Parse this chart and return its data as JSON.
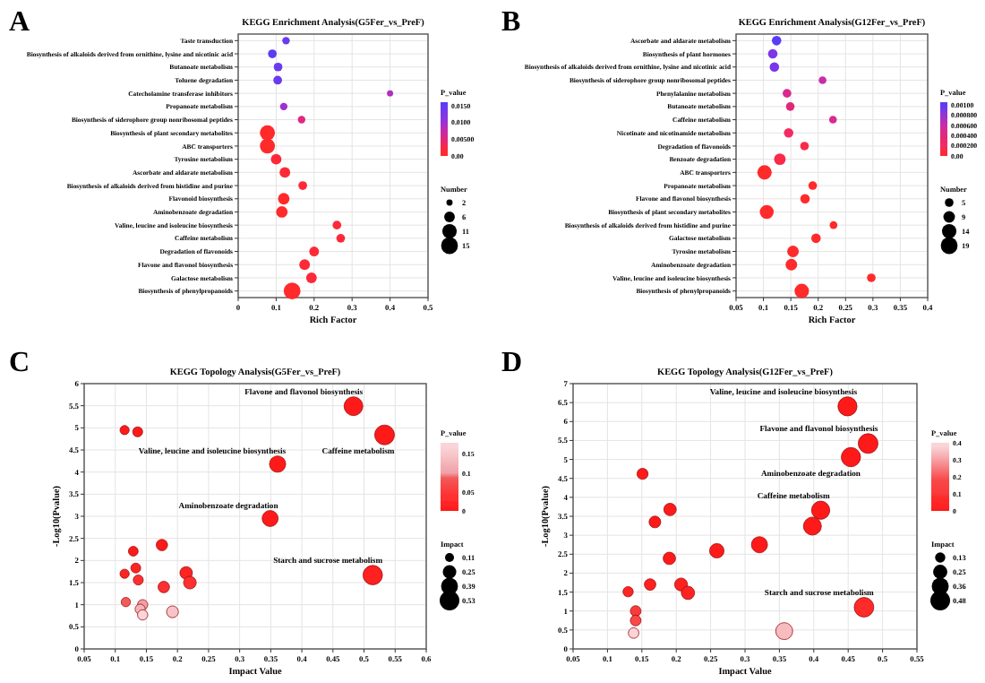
{
  "chart_data": [
    {
      "type": "bubble",
      "title": "KEGG Enrichment Analysis(G5Fer_vs_PreF)",
      "xlabel": "Rich Factor",
      "orientation": "horizontal",
      "annotations": [
        "A"
      ],
      "categories": [
        "Taste transduction",
        "Biosynthesis of alkaloids derived from ornithine, lysine and nicotinic acid",
        "Butanoate metabolism",
        "Toluene degradation",
        "Catecholamine transferase inhibitors",
        "Propanoate metabolism",
        "Biosynthesis of siderophore group nonribosomal peptides",
        "Biosynthesis of plant secondary metabolites",
        "ABC transporters",
        "Tyrosine metabolism",
        "Ascorbate and aldarate metabolism",
        "Biosynthesis of alkaloids derived from histidine and purine",
        "Flavonoid biosynthesis",
        "Aminobenzoate degradation",
        "Valine, leucine and isoleucine biosynthesis",
        "Caffeine metabolism",
        "Degradation of flavonoids",
        "Flavone and flavonol biosynthesis",
        "Galactose metabolism",
        "Biosynthesis of phenylpropanoids"
      ],
      "series": [
        {
          "values": [
            0.126,
            0.09,
            0.105,
            0.104,
            0.4,
            0.12,
            0.167,
            0.077,
            0.077,
            0.1,
            0.123,
            0.17,
            0.12,
            0.115,
            0.26,
            0.27,
            0.2,
            0.175,
            0.193,
            0.142
          ],
          "sizes": [
            3,
            4,
            4,
            4,
            2,
            3,
            3,
            12,
            12,
            6,
            6,
            4,
            7,
            7,
            4,
            4,
            5,
            6,
            6,
            15
          ],
          "cvalues": [
            0.0148,
            0.0155,
            0.014,
            0.014,
            0.009,
            0.0095,
            0.005,
            0.0002,
            0.0003,
            0.001,
            0.0015,
            0.002,
            0.0008,
            0.0008,
            0.002,
            0.002,
            0.0015,
            0.001,
            0.001,
            0.0001
          ],
          "colors": [
            "#6a3af0",
            "#5a3cf5",
            "#6a3af0",
            "#6a3af0",
            "#b02ec0",
            "#a030d0",
            "#e02880",
            "#ff2a2a",
            "#ff2a2a",
            "#fc2a38",
            "#fc2a38",
            "#fc2a38",
            "#ff2a2a",
            "#ff2a2a",
            "#fc2a38",
            "#fc2a38",
            "#fc2a38",
            "#fc2a38",
            "#fc2a38",
            "#ff2a2a"
          ]
        }
      ],
      "xlim": [
        0,
        0.5
      ],
      "xticks": [
        0,
        0.1,
        0.2,
        0.3,
        0.4,
        0.5
      ],
      "grid": true,
      "clabel": "P_value",
      "clim": [
        0,
        0.016
      ],
      "cticks": [
        {
          "value": 0,
          "label": "0.00"
        },
        {
          "value": 0.005,
          "label": "0.00500"
        },
        {
          "value": 0.01,
          "label": "0.0100"
        },
        {
          "value": 0.015,
          "label": "0.0150"
        }
      ],
      "legend_title": "Number",
      "size_legend": [
        2,
        6,
        11,
        15
      ]
    },
    {
      "type": "bubble",
      "title": "KEGG Enrichment Analysis(G12Fer_vs_PreF)",
      "xlabel": "Rich Factor",
      "orientation": "horizontal",
      "annotations": [
        "B"
      ],
      "categories": [
        "Ascorbate and aldarate metabolism",
        "Biosynthesis of plant hormones",
        "Biosynthesis of alkaloids derived from ornithine, lysine and nicotinic acid",
        "Biosynthesis of siderophore group nonribosomal peptides",
        "Phenylalanine metabolism",
        "Butanoate metabolism",
        "Caffeine metabolism",
        "Nicotinate and nicotinamide metabolism",
        "Degradation of flavonoids",
        "Benzoate degradation",
        "ABC transporters",
        "Propanoate metabolism",
        "Flavone and flavonol biosynthesis",
        "Biosynthesis of plant secondary metabolites",
        "Biosynthesis of alkaloids derived from histidine and purine",
        "Galactose metabolism",
        "Tyrosine metabolism",
        "Aminobenzoate degradation",
        "Valine, leucine and isoleucine biosynthesis",
        "Biosynthesis of phenylpropanoids"
      ],
      "series": [
        {
          "values": [
            0.124,
            0.117,
            0.12,
            0.208,
            0.143,
            0.149,
            0.227,
            0.146,
            0.175,
            0.13,
            0.102,
            0.19,
            0.176,
            0.106,
            0.228,
            0.196,
            0.154,
            0.151,
            0.297,
            0.17
          ],
          "sizes": [
            6,
            6,
            6,
            4,
            5,
            5,
            4,
            6,
            5,
            9,
            14,
            5,
            6,
            13,
            4,
            6,
            9,
            9,
            5,
            14
          ],
          "cvalues": [
            0.001,
            0.0009,
            0.0009,
            0.0006,
            0.0005,
            0.0004,
            0.0005,
            0.0002,
            0.0001,
            0.0001,
            0,
            0,
            0,
            0,
            0,
            0,
            0,
            0,
            0,
            0
          ],
          "colors": [
            "#5a3cf5",
            "#7a36e8",
            "#7a36e8",
            "#c82ca8",
            "#d82a90",
            "#e02878",
            "#d82a90",
            "#f42a62",
            "#fa2a48",
            "#fa2a48",
            "#ff2a2a",
            "#ff2a2a",
            "#ff2a2a",
            "#ff2a2a",
            "#ff2a2a",
            "#ff2a2a",
            "#ff2a2a",
            "#ff2a2a",
            "#ff2a2a",
            "#ff2a2a"
          ]
        }
      ],
      "xlim": [
        0.05,
        0.4
      ],
      "xticks": [
        0.05,
        0.1,
        0.15,
        0.2,
        0.25,
        0.3,
        0.35,
        0.4
      ],
      "grid": true,
      "clabel": "P_value",
      "clim": [
        0,
        0.00105
      ],
      "cticks": [
        {
          "value": 0,
          "label": "0.00"
        },
        {
          "value": 0.0002,
          "label": "0.000200"
        },
        {
          "value": 0.0004,
          "label": "0.000400"
        },
        {
          "value": 0.0006,
          "label": "0.000600"
        },
        {
          "value": 0.0008,
          "label": "0.000800"
        },
        {
          "value": 0.001,
          "label": "0.00100"
        }
      ],
      "legend_title": "Number",
      "size_legend": [
        5,
        9,
        14,
        19
      ]
    },
    {
      "type": "bubble",
      "title": "KEGG Topology Analysis(G5Fer_vs_PreF)",
      "xlabel": "Impact Value",
      "ylabel": "-Log10(Pvalue)",
      "annotations": [
        "C",
        {
          "text": "Flavone and flavonol biosynthesis",
          "x": 0.483,
          "y": 5.49
        },
        {
          "text": "Caffeine metabolism",
          "x": 0.533,
          "y": 4.84
        },
        {
          "text": "Valine, leucine and isoleucine biosynthesis",
          "x": 0.361,
          "y": 4.18
        },
        {
          "text": "Aminobenzoate degradation",
          "x": 0.349,
          "y": 2.95
        },
        {
          "text": "Starch and sucrose metabolism",
          "x": 0.514,
          "y": 1.67
        }
      ],
      "x": [
        0.115,
        0.136,
        0.483,
        0.533,
        0.361,
        0.349,
        0.514,
        0.175,
        0.129,
        0.133,
        0.115,
        0.137,
        0.214,
        0.22,
        0.178,
        0.117,
        0.144,
        0.14,
        0.144,
        0.192
      ],
      "series": [
        {
          "values": [
            4.95,
            4.91,
            5.49,
            4.84,
            4.18,
            2.95,
            1.67,
            2.35,
            2.21,
            1.83,
            1.7,
            1.56,
            1.72,
            1.5,
            1.4,
            1.06,
            1.0,
            0.9,
            0.77,
            0.84
          ],
          "sizes": [
            0.115,
            0.136,
            0.483,
            0.533,
            0.361,
            0.349,
            0.514,
            0.175,
            0.129,
            0.133,
            0.115,
            0.137,
            0.214,
            0.22,
            0.178,
            0.117,
            0.144,
            0.14,
            0.144,
            0.192
          ],
          "cvalues": [
            1e-05,
            1e-05,
            0,
            0,
            0.0001,
            0.001,
            0.021,
            0.0045,
            0.006,
            0.015,
            0.02,
            0.028,
            0.019,
            0.032,
            0.04,
            0.087,
            0.1,
            0.126,
            0.17,
            0.145
          ],
          "colors": [
            "#ff1a1a",
            "#ff1a1a",
            "#ff1a1a",
            "#ff1a1a",
            "#ff1a1a",
            "#ff1a1a",
            "#ff2020",
            "#ff1a1a",
            "#ff1a1a",
            "#ff2424",
            "#ff2424",
            "#fe3030",
            "#ff2424",
            "#fe3030",
            "#fe3030",
            "#f25a5a",
            "#f0a0a8",
            "#f4b4b8",
            "#fad4d8",
            "#f6c4c8"
          ]
        }
      ],
      "xlim": [
        0.05,
        0.6
      ],
      "xticks": [
        0.05,
        0.1,
        0.15,
        0.2,
        0.25,
        0.3,
        0.35,
        0.4,
        0.45,
        0.5,
        0.55,
        0.6
      ],
      "ylim": [
        0,
        6
      ],
      "yticks": [
        0,
        0.5,
        1,
        1.5,
        2,
        2.5,
        3,
        3.5,
        4,
        4.5,
        5,
        5.5,
        6
      ],
      "grid": true,
      "clabel": "P_value",
      "clim": [
        0,
        0.18
      ],
      "cticks": [
        0,
        0.05,
        0.1,
        0.15
      ],
      "legend_title": "Impact",
      "size_legend": [
        0.11,
        0.25,
        0.39,
        0.53
      ]
    },
    {
      "type": "bubble",
      "title": "KEGG Topology Analysis(G12Fer_vs_PreF)",
      "xlabel": "Impact Value",
      "ylabel": "-Log10(Pvalue)",
      "annotations": [
        "D",
        {
          "text": "Valine, leucine and isoleucine biosynthesis",
          "x": 0.449,
          "y": 6.4
        },
        {
          "text": "Flavone and flavonol biosynthesis",
          "x": 0.479,
          "y": 5.42
        },
        {
          "text": "Aminobenzoate degradation",
          "x": 0.454,
          "y": 5.06
        },
        {
          "text": "Caffeine metabolism",
          "x": 0.41,
          "y": 3.66
        },
        {
          "text": "Starch and sucrose metabolism",
          "x": 0.473,
          "y": 1.1
        }
      ],
      "x": [
        0.449,
        0.479,
        0.454,
        0.41,
        0.398,
        0.321,
        0.259,
        0.151,
        0.191,
        0.169,
        0.19,
        0.162,
        0.207,
        0.217,
        0.13,
        0.141,
        0.141,
        0.138,
        0.357,
        0.473
      ],
      "series": [
        {
          "values": [
            6.4,
            5.42,
            5.06,
            3.66,
            3.24,
            2.75,
            2.59,
            4.62,
            3.68,
            3.35,
            2.39,
            1.7,
            1.7,
            1.48,
            1.51,
            1.0,
            0.75,
            0.42,
            0.47,
            1.1
          ],
          "sizes": [
            0.449,
            0.479,
            0.454,
            0.41,
            0.398,
            0.321,
            0.259,
            0.151,
            0.191,
            0.169,
            0.19,
            0.162,
            0.207,
            0.217,
            0.13,
            0.141,
            0.141,
            0.138,
            0.357,
            0.473
          ],
          "cvalues": [
            0,
            0,
            0,
            0.0002,
            0.0006,
            0.0018,
            0.0026,
            0,
            0.0002,
            0.0004,
            0.004,
            0.02,
            0.02,
            0.033,
            0.031,
            0.1,
            0.18,
            0.38,
            0.34,
            0.079
          ],
          "colors": [
            "#ff1a1a",
            "#ff1a1a",
            "#ff1a1a",
            "#ff1a1a",
            "#ff1a1a",
            "#ff1a1a",
            "#ff1a1a",
            "#ff1a1a",
            "#ff1a1a",
            "#ff1a1a",
            "#ff1a1a",
            "#ff2020",
            "#ff2020",
            "#ff2424",
            "#ff2424",
            "#fa3a3a",
            "#f84848",
            "#fcd4d8",
            "#f6bcc0",
            "#ff2a2a"
          ]
        }
      ],
      "xlim": [
        0.05,
        0.55
      ],
      "xticks": [
        0.05,
        0.1,
        0.15,
        0.2,
        0.25,
        0.3,
        0.35,
        0.4,
        0.45,
        0.5,
        0.55
      ],
      "ylim": [
        0,
        7
      ],
      "yticks": [
        0,
        0.5,
        1,
        1.5,
        2,
        2.5,
        3,
        3.5,
        4,
        4.5,
        5,
        5.5,
        6,
        6.5,
        7
      ],
      "grid": true,
      "clabel": "P_value",
      "clim": [
        0,
        0.4
      ],
      "cticks": [
        0,
        0.1,
        0.2,
        0.3,
        0.4
      ],
      "legend_title": "Impact",
      "size_legend": [
        0.13,
        0.25,
        0.36,
        0.48
      ]
    }
  ]
}
